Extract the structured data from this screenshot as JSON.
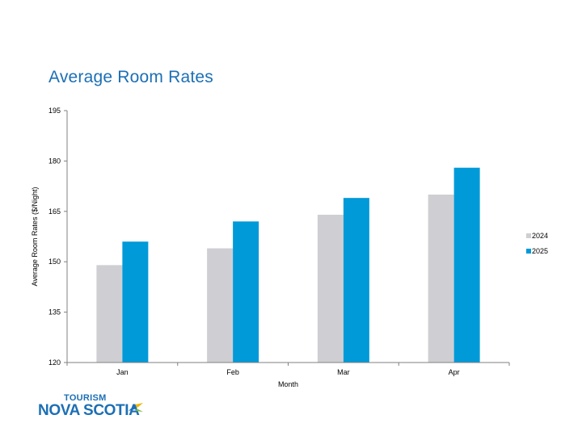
{
  "slide": {
    "title": "Average Room Rates"
  },
  "logo": {
    "line1": "TOURISM",
    "line2": "NOVA SCOTIA"
  },
  "colors": {
    "title": "#1c6fb5",
    "logo": "#1c6fb5",
    "series_2024": "#cfcfd3",
    "series_2025": "#009ad8"
  },
  "chart_data": {
    "type": "bar",
    "categories": [
      "Jan",
      "Feb",
      "Mar",
      "Apr"
    ],
    "series": [
      {
        "name": "2024",
        "values": [
          149,
          154,
          164,
          170
        ],
        "color": "#cfcfd3"
      },
      {
        "name": "2025",
        "values": [
          156,
          162,
          169,
          178
        ],
        "color": "#009ad8"
      }
    ],
    "xlabel": "Month",
    "ylabel": "Average Room Rates ($/Night)",
    "ylim": [
      120,
      195
    ],
    "yticks": [
      120,
      135,
      150,
      165,
      180,
      195
    ],
    "grid": false,
    "legend_position": "right"
  }
}
